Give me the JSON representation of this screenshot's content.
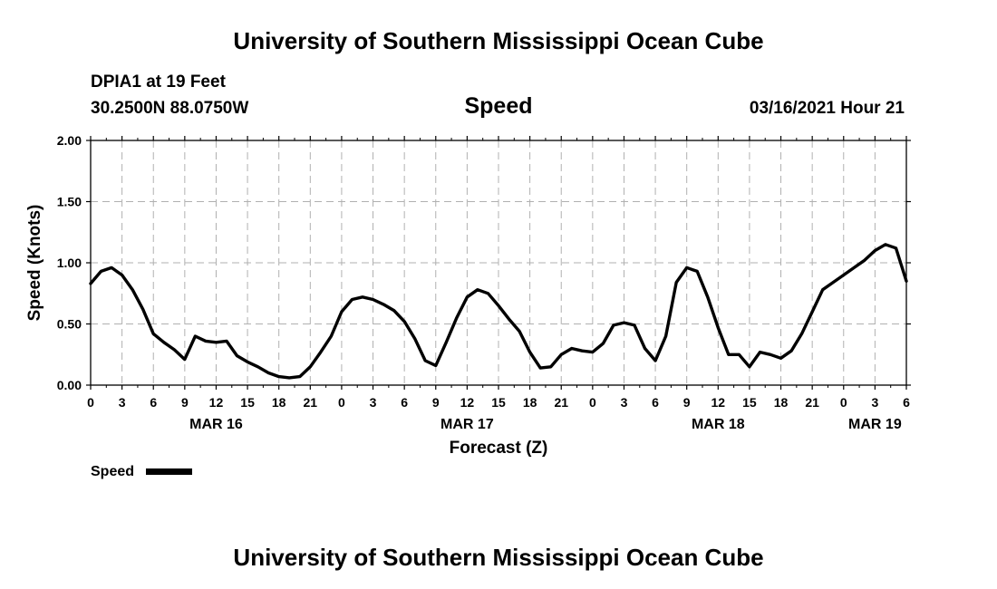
{
  "page": {
    "title_top": "University of Southern Mississippi Ocean Cube",
    "title_bottom": "University of Southern Mississippi Ocean Cube",
    "station": "DPIA1 at 19 Feet",
    "coords": "30.2500N 88.0750W",
    "timestamp": "03/16/2021 Hour 21"
  },
  "chart_data": {
    "type": "line",
    "title": "Speed",
    "xlabel": "Forecast (Z)",
    "ylabel": "Speed (Knots)",
    "ylim": [
      0,
      2
    ],
    "xlim": [
      0,
      78
    ],
    "x_unit": "hours since MAR 16 00Z",
    "grid": true,
    "y_ticks": [
      {
        "value": 0,
        "label": "0.00"
      },
      {
        "value": 0.5,
        "label": "0.50"
      },
      {
        "value": 1,
        "label": "1.00"
      },
      {
        "value": 1.5,
        "label": "1.50"
      },
      {
        "value": 2,
        "label": "2.00"
      }
    ],
    "x_ticks": [
      {
        "value": 0,
        "label": "0"
      },
      {
        "value": 3,
        "label": "3"
      },
      {
        "value": 6,
        "label": "6"
      },
      {
        "value": 9,
        "label": "9"
      },
      {
        "value": 12,
        "label": "12"
      },
      {
        "value": 15,
        "label": "15"
      },
      {
        "value": 18,
        "label": "18"
      },
      {
        "value": 21,
        "label": "21"
      },
      {
        "value": 24,
        "label": "0"
      },
      {
        "value": 27,
        "label": "3"
      },
      {
        "value": 30,
        "label": "6"
      },
      {
        "value": 33,
        "label": "9"
      },
      {
        "value": 36,
        "label": "12"
      },
      {
        "value": 39,
        "label": "15"
      },
      {
        "value": 42,
        "label": "18"
      },
      {
        "value": 45,
        "label": "21"
      },
      {
        "value": 48,
        "label": "0"
      },
      {
        "value": 51,
        "label": "3"
      },
      {
        "value": 54,
        "label": "6"
      },
      {
        "value": 57,
        "label": "9"
      },
      {
        "value": 60,
        "label": "12"
      },
      {
        "value": 63,
        "label": "15"
      },
      {
        "value": 66,
        "label": "18"
      },
      {
        "value": 69,
        "label": "21"
      },
      {
        "value": 72,
        "label": "0"
      },
      {
        "value": 75,
        "label": "3"
      },
      {
        "value": 78,
        "label": "6"
      }
    ],
    "date_labels": [
      {
        "value": 12,
        "label": "MAR 16"
      },
      {
        "value": 36,
        "label": "MAR 17"
      },
      {
        "value": 60,
        "label": "MAR 18"
      },
      {
        "value": 75,
        "label": "MAR 19"
      }
    ],
    "series": [
      {
        "name": "Speed",
        "color": "#000000",
        "x": [
          0,
          1,
          2,
          3,
          4,
          5,
          6,
          7,
          8,
          9,
          10,
          11,
          12,
          13,
          14,
          15,
          16,
          17,
          18,
          19,
          20,
          21,
          22,
          23,
          24,
          25,
          26,
          27,
          28,
          29,
          30,
          31,
          32,
          33,
          34,
          35,
          36,
          37,
          38,
          39,
          40,
          41,
          42,
          43,
          44,
          45,
          46,
          47,
          48,
          49,
          50,
          51,
          52,
          53,
          54,
          55,
          56,
          57,
          58,
          59,
          60,
          61,
          62,
          63,
          64,
          65,
          66,
          67,
          68,
          69,
          70,
          71,
          72,
          73,
          74,
          75,
          76,
          77,
          78
        ],
        "values": [
          0.83,
          0.93,
          0.96,
          0.9,
          0.78,
          0.62,
          0.42,
          0.35,
          0.29,
          0.21,
          0.4,
          0.36,
          0.35,
          0.36,
          0.24,
          0.19,
          0.15,
          0.1,
          0.07,
          0.06,
          0.07,
          0.15,
          0.27,
          0.4,
          0.6,
          0.7,
          0.72,
          0.7,
          0.66,
          0.61,
          0.52,
          0.38,
          0.2,
          0.16,
          0.35,
          0.55,
          0.72,
          0.78,
          0.75,
          0.65,
          0.54,
          0.44,
          0.27,
          0.14,
          0.15,
          0.25,
          0.3,
          0.28,
          0.27,
          0.34,
          0.49,
          0.51,
          0.49,
          0.3,
          0.2,
          0.4,
          0.84,
          0.96,
          0.93,
          0.72,
          0.47,
          0.25,
          0.25,
          0.15,
          0.27,
          0.25,
          0.22,
          0.28,
          0.42,
          0.6,
          0.78,
          0.84,
          0.9,
          0.96,
          1.02,
          1.1,
          1.15,
          1.12,
          0.85
        ]
      }
    ],
    "legend": {
      "label": "Speed",
      "placement": "bottom-left"
    }
  }
}
